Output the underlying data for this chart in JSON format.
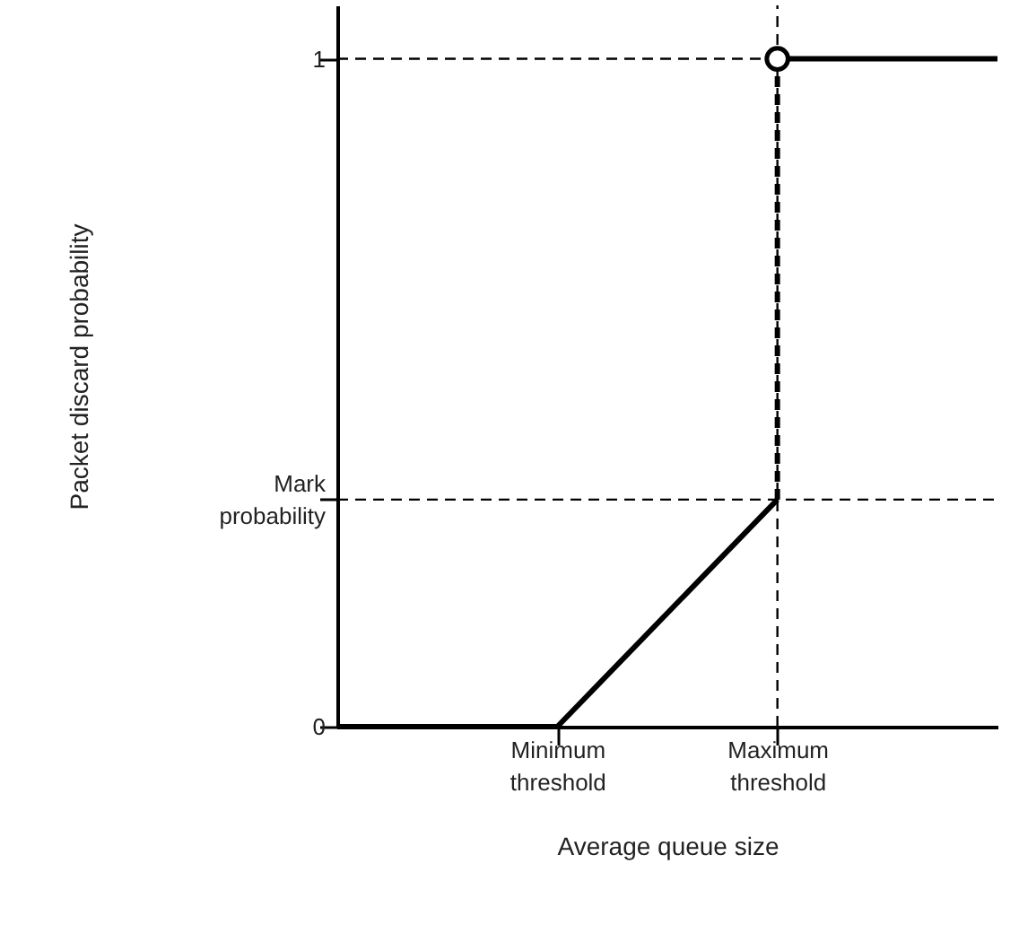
{
  "chart_data": {
    "type": "line",
    "xlabel": "Average queue size",
    "ylabel": "Packet discard probability",
    "categories": [
      null,
      "Minimum threshold",
      "Maximum threshold",
      null
    ],
    "ylim": [
      0,
      1.08
    ],
    "yticks": [
      0,
      {
        "value": 0.34,
        "label": "Mark probability"
      },
      1
    ],
    "grid": false,
    "series": [
      {
        "type": "line",
        "values": [
          0,
          0,
          0.34,
          null
        ],
        "color": "#000000",
        "line_style": "solid"
      },
      {
        "type": "line",
        "x": [
          "Maximum threshold",
          "Maximum threshold"
        ],
        "values": [
          0.34,
          1
        ],
        "color": "#000000",
        "line_style": "dashed"
      },
      {
        "type": "line",
        "values": [
          null,
          null,
          1,
          1
        ],
        "color": "#000000",
        "line_style": "solid"
      },
      {
        "type": "scatter",
        "x": [
          "Maximum threshold"
        ],
        "values": [
          1
        ],
        "color": "#000000",
        "marker": "circle"
      }
    ],
    "ref_lines": [
      {
        "axis": "y",
        "value": 1,
        "line_style": "dashed",
        "color": "#000000"
      },
      {
        "axis": "y",
        "value": 0.34,
        "line_style": "dashed",
        "color": "#000000"
      },
      {
        "axis": "x",
        "value": "Maximum threshold",
        "line_style": "dashed",
        "color": "#000000"
      }
    ]
  }
}
